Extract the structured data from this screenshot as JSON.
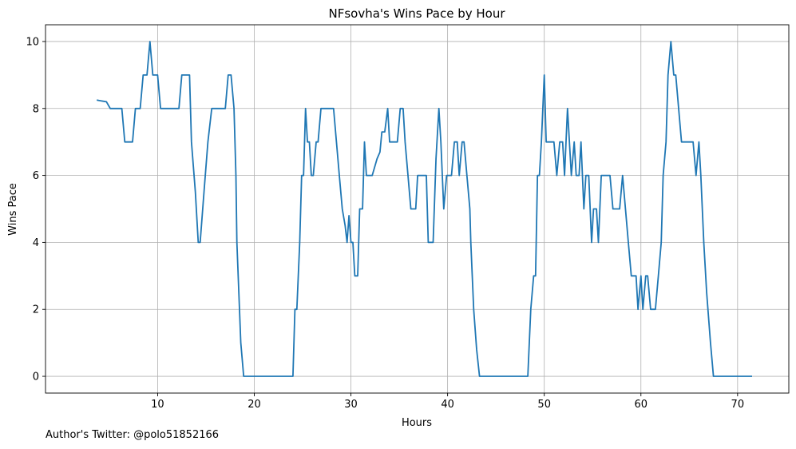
{
  "chart_data": {
    "type": "line",
    "title": "NFsovha's Wins Pace by Hour",
    "xlabel": "Hours",
    "ylabel": "Wins Pace",
    "xlim": [
      -1.6,
      75.3
    ],
    "ylim": [
      -0.5,
      10.5
    ],
    "xticks": [
      10,
      20,
      30,
      40,
      50,
      60,
      70
    ],
    "yticks": [
      0,
      2,
      4,
      6,
      8,
      10
    ],
    "grid": true,
    "line_color": "#1f77b4",
    "series": [
      {
        "points": [
          [
            3.7,
            8.25
          ],
          [
            4.7,
            8.2
          ],
          [
            5.1,
            8.0
          ],
          [
            6.1,
            8.0
          ],
          [
            6.3,
            8.0
          ],
          [
            6.6,
            7.0
          ],
          [
            7.0,
            7.0
          ],
          [
            7.4,
            7.0
          ],
          [
            7.7,
            8.0
          ],
          [
            8.2,
            8.0
          ],
          [
            8.5,
            9.0
          ],
          [
            8.9,
            9.0
          ],
          [
            9.2,
            10.0
          ],
          [
            9.5,
            9.0
          ],
          [
            10.0,
            9.0
          ],
          [
            10.3,
            8.0
          ],
          [
            11.0,
            8.0
          ],
          [
            12.2,
            8.0
          ],
          [
            12.5,
            9.0
          ],
          [
            13.3,
            9.0
          ],
          [
            13.5,
            7.0
          ],
          [
            13.9,
            5.5
          ],
          [
            14.2,
            4.0
          ],
          [
            14.4,
            4.0
          ],
          [
            14.8,
            5.5
          ],
          [
            15.2,
            7.0
          ],
          [
            15.6,
            8.0
          ],
          [
            16.3,
            8.0
          ],
          [
            17.0,
            8.0
          ],
          [
            17.3,
            9.0
          ],
          [
            17.6,
            9.0
          ],
          [
            17.9,
            8.0
          ],
          [
            18.1,
            6.0
          ],
          [
            18.2,
            4.0
          ],
          [
            18.6,
            1.0
          ],
          [
            18.9,
            0.0
          ],
          [
            24.0,
            0.0
          ],
          [
            24.2,
            2.0
          ],
          [
            24.4,
            2.0
          ],
          [
            24.7,
            4.0
          ],
          [
            24.9,
            6.0
          ],
          [
            25.1,
            6.0
          ],
          [
            25.3,
            8.0
          ],
          [
            25.5,
            7.0
          ],
          [
            25.7,
            7.0
          ],
          [
            25.9,
            6.0
          ],
          [
            26.1,
            6.0
          ],
          [
            26.4,
            7.0
          ],
          [
            26.6,
            7.0
          ],
          [
            26.9,
            8.0
          ],
          [
            28.2,
            8.0
          ],
          [
            28.5,
            7.0
          ],
          [
            28.8,
            6.0
          ],
          [
            29.1,
            5.0
          ],
          [
            29.4,
            4.5
          ],
          [
            29.6,
            4.0
          ],
          [
            29.8,
            4.8
          ],
          [
            30.0,
            4.0
          ],
          [
            30.2,
            4.0
          ],
          [
            30.4,
            3.0
          ],
          [
            30.7,
            3.0
          ],
          [
            30.9,
            5.0
          ],
          [
            31.2,
            5.0
          ],
          [
            31.4,
            7.0
          ],
          [
            31.6,
            6.0
          ],
          [
            32.2,
            6.0
          ],
          [
            32.7,
            6.5
          ],
          [
            33.0,
            6.7
          ],
          [
            33.2,
            7.3
          ],
          [
            33.5,
            7.3
          ],
          [
            33.8,
            8.0
          ],
          [
            34.0,
            7.0
          ],
          [
            34.8,
            7.0
          ],
          [
            35.1,
            8.0
          ],
          [
            35.4,
            8.0
          ],
          [
            35.6,
            7.0
          ],
          [
            35.9,
            6.0
          ],
          [
            36.2,
            5.0
          ],
          [
            36.7,
            5.0
          ],
          [
            36.9,
            6.0
          ],
          [
            37.8,
            6.0
          ],
          [
            38.0,
            4.0
          ],
          [
            38.5,
            4.0
          ],
          [
            38.8,
            6.5
          ],
          [
            39.1,
            8.0
          ],
          [
            39.3,
            7.0
          ],
          [
            39.6,
            5.0
          ],
          [
            39.9,
            6.0
          ],
          [
            40.4,
            6.0
          ],
          [
            40.7,
            7.0
          ],
          [
            41.0,
            7.0
          ],
          [
            41.2,
            6.0
          ],
          [
            41.5,
            7.0
          ],
          [
            41.7,
            7.0
          ],
          [
            42.0,
            6.0
          ],
          [
            42.3,
            5.0
          ],
          [
            42.4,
            4.0
          ],
          [
            42.7,
            2.0
          ],
          [
            43.0,
            0.8
          ],
          [
            43.3,
            0.0
          ],
          [
            48.3,
            0.0
          ],
          [
            48.6,
            2.0
          ],
          [
            48.9,
            3.0
          ],
          [
            49.1,
            3.0
          ],
          [
            49.3,
            6.0
          ],
          [
            49.5,
            6.0
          ],
          [
            49.7,
            7.0
          ],
          [
            50.0,
            9.0
          ],
          [
            50.2,
            7.0
          ],
          [
            51.0,
            7.0
          ],
          [
            51.3,
            6.0
          ],
          [
            51.6,
            7.0
          ],
          [
            51.9,
            7.0
          ],
          [
            52.1,
            6.0
          ],
          [
            52.4,
            8.0
          ],
          [
            52.6,
            7.0
          ],
          [
            52.8,
            6.0
          ],
          [
            53.1,
            7.0
          ],
          [
            53.3,
            6.0
          ],
          [
            53.6,
            6.0
          ],
          [
            53.8,
            7.0
          ],
          [
            54.1,
            5.0
          ],
          [
            54.3,
            6.0
          ],
          [
            54.6,
            6.0
          ],
          [
            54.9,
            4.0
          ],
          [
            55.1,
            5.0
          ],
          [
            55.4,
            5.0
          ],
          [
            55.6,
            4.0
          ],
          [
            55.9,
            6.0
          ],
          [
            56.8,
            6.0
          ],
          [
            57.1,
            5.0
          ],
          [
            57.8,
            5.0
          ],
          [
            58.1,
            6.0
          ],
          [
            58.4,
            5.0
          ],
          [
            58.7,
            4.0
          ],
          [
            59.0,
            3.0
          ],
          [
            59.5,
            3.0
          ],
          [
            59.7,
            2.0
          ],
          [
            60.0,
            3.0
          ],
          [
            60.2,
            2.0
          ],
          [
            60.5,
            3.0
          ],
          [
            60.7,
            3.0
          ],
          [
            61.0,
            2.0
          ],
          [
            61.5,
            2.0
          ],
          [
            61.8,
            3.0
          ],
          [
            62.1,
            4.0
          ],
          [
            62.3,
            6.0
          ],
          [
            62.6,
            7.0
          ],
          [
            62.8,
            9.0
          ],
          [
            63.1,
            10.0
          ],
          [
            63.4,
            9.0
          ],
          [
            63.6,
            9.0
          ],
          [
            63.9,
            8.0
          ],
          [
            64.2,
            7.0
          ],
          [
            65.4,
            7.0
          ],
          [
            65.7,
            6.0
          ],
          [
            66.0,
            7.0
          ],
          [
            66.2,
            6.0
          ],
          [
            66.5,
            4.0
          ],
          [
            66.8,
            2.5
          ],
          [
            67.2,
            1.0
          ],
          [
            67.5,
            0.0
          ],
          [
            71.5,
            0.0
          ]
        ]
      }
    ]
  },
  "footer": {
    "author_text": "Author's Twitter: @polo51852166"
  }
}
